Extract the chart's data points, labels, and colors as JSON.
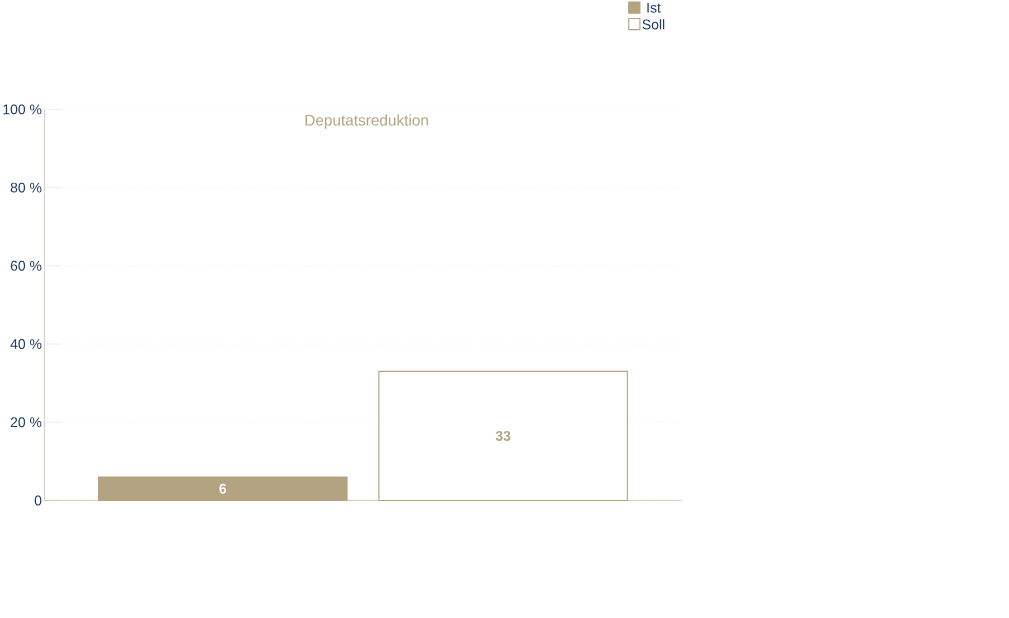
{
  "chart_data": {
    "type": "bar",
    "title": "Deputatsreduktion",
    "categories": [
      null
    ],
    "series": [
      {
        "name": "Ist",
        "color": "#b3a381",
        "values": [
          6
        ]
      },
      {
        "name": "Soll",
        "color": "#ffffff",
        "values": [
          33
        ]
      }
    ],
    "ylim": [
      0,
      100
    ],
    "yticks": [
      {
        "value": 0,
        "label": "0"
      },
      {
        "value": 20,
        "label": "20 %"
      },
      {
        "value": 40,
        "label": "40 %"
      },
      {
        "value": 60,
        "label": "60 %"
      },
      {
        "value": 80,
        "label": "80 %"
      },
      {
        "value": 100,
        "label": "100 %"
      }
    ],
    "grid": "y",
    "legend": "top right",
    "data_labels": true
  }
}
